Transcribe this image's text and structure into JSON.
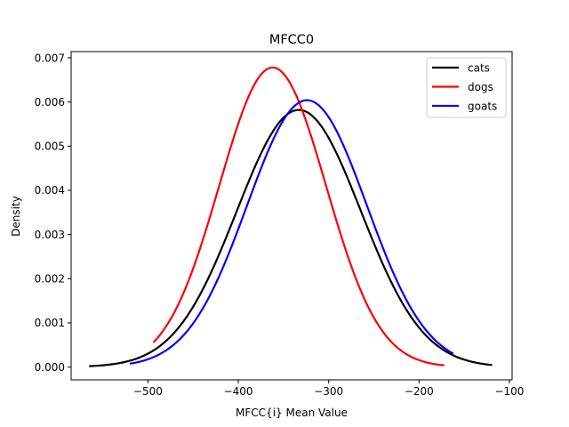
{
  "chart_data": {
    "type": "line",
    "title": "MFCC0",
    "xlabel": "MFCC{i} Mean Value",
    "ylabel": "Density",
    "xlim": [
      -585,
      -97
    ],
    "ylim": [
      -0.00029,
      0.00714
    ],
    "xticks": [
      -500,
      -400,
      -300,
      -200,
      -100
    ],
    "xtick_labels": [
      "−500",
      "−400",
      "−300",
      "−200",
      "−100"
    ],
    "yticks": [
      0.0,
      0.001,
      0.002,
      0.003,
      0.004,
      0.005,
      0.006,
      0.007
    ],
    "ytick_labels": [
      "0.000",
      "0.001",
      "0.002",
      "0.003",
      "0.004",
      "0.005",
      "0.006",
      "0.007"
    ],
    "grid": false,
    "legend_position": "top-right",
    "series": [
      {
        "name": "cats",
        "color": "#000000",
        "mean": -333,
        "std": 68.7,
        "peak": 0.00582,
        "x_range": [
          -565,
          -119
        ]
      },
      {
        "name": "dogs",
        "color": "#ff0000",
        "mean": -362,
        "std": 59.0,
        "peak": 0.00678,
        "x_range": [
          -494,
          -172
        ]
      },
      {
        "name": "goats",
        "color": "#0000ff",
        "mean": -324,
        "std": 66.2,
        "peak": 0.00604,
        "x_range": [
          -520,
          -162
        ]
      }
    ]
  }
}
